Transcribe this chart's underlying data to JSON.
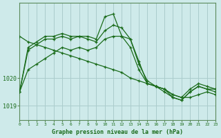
{
  "title": "Graphe pression niveau de la mer (hPa)",
  "background_color": "#ceeaea",
  "grid_color": "#aacccc",
  "line_color": "#1a6b1a",
  "xlim": [
    0,
    23
  ],
  "ylim_min": 1018.5,
  "ylim_max": 1022.7,
  "yticks": [
    1019,
    1020
  ],
  "xticks": [
    0,
    1,
    2,
    3,
    4,
    5,
    6,
    7,
    8,
    9,
    10,
    11,
    12,
    13,
    14,
    15,
    16,
    17,
    18,
    19,
    20,
    21,
    22,
    23
  ],
  "series": [
    [
      1019.5,
      1021.1,
      1021.3,
      1021.5,
      1021.5,
      1021.6,
      1021.5,
      1021.5,
      1021.5,
      1021.4,
      1022.2,
      1022.3,
      1021.5,
      1021.4,
      1020.6,
      1019.8,
      1019.7,
      1019.6,
      1019.4,
      1019.3,
      1019.6,
      1019.8,
      1019.7,
      1019.6
    ],
    [
      1019.5,
      1021.0,
      1021.2,
      1021.4,
      1021.4,
      1021.5,
      1021.4,
      1021.5,
      1021.4,
      1021.3,
      1021.7,
      1021.9,
      1021.8,
      1021.4,
      1020.5,
      1019.9,
      1019.7,
      1019.6,
      1019.3,
      1019.2,
      1019.5,
      1019.7,
      1019.6,
      1019.6
    ],
    [
      1019.5,
      1020.3,
      1020.5,
      1020.7,
      1020.9,
      1021.1,
      1021.0,
      1021.1,
      1021.0,
      1021.1,
      1021.4,
      1021.5,
      1021.5,
      1021.1,
      1020.3,
      1019.8,
      1019.7,
      1019.5,
      1019.3,
      1019.2,
      1019.5,
      1019.7,
      1019.6,
      1019.5
    ],
    [
      1021.5,
      1021.3,
      1021.2,
      1021.1,
      1021.0,
      1020.9,
      1020.8,
      1020.7,
      1020.6,
      1020.5,
      1020.4,
      1020.3,
      1020.2,
      1020.0,
      1019.9,
      1019.8,
      1019.7,
      1019.6,
      1019.4,
      1019.3,
      1019.3,
      1019.4,
      1019.5,
      1019.4
    ]
  ]
}
